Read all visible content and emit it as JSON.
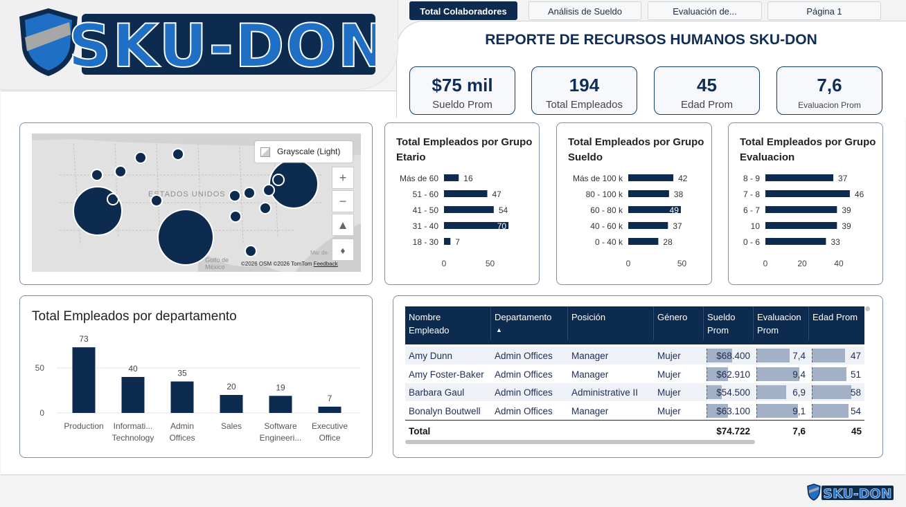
{
  "tabs": [
    "Total Colaboradores",
    "Análisis de Sueldo",
    "Evaluación de...",
    "Página 1"
  ],
  "brand": "SKU-DON",
  "title": "REPORTE DE RECURSOS HUMANOS SKU-DON",
  "kpis": [
    {
      "value": "$75 mil",
      "label": "Sueldo Prom"
    },
    {
      "value": "194",
      "label": "Total Empleados"
    },
    {
      "value": "45",
      "label": "Edad Prom"
    },
    {
      "value": "7,6",
      "label": "Evaluacion Prom"
    }
  ],
  "map": {
    "style_label": "Grayscale (Light)",
    "country_label": "ESTADOS UNIDOS",
    "gulf_label": "Golfo de México",
    "sea_label": "Mar de",
    "attribution": "©2026 OSM  ©2026 TomTom",
    "feedback": "Feedback",
    "zoom_in": "+",
    "zoom_out": "−",
    "colors": {
      "bubble": "#0d2a4f",
      "land": "#e1e1e1"
    }
  },
  "chart_data": [
    {
      "type": "bar",
      "orientation": "horizontal",
      "title": "Total Empleados por Grupo Etario",
      "categories": [
        "Más de 60",
        "51 - 60",
        "41 - 50",
        "31 - 40",
        "18 - 30"
      ],
      "values": [
        16,
        47,
        54,
        70,
        7
      ],
      "xticks": [
        "0",
        "50"
      ],
      "xlim": [
        0,
        75
      ]
    },
    {
      "type": "bar",
      "orientation": "horizontal",
      "title": "Total Empleados por Grupo Sueldo",
      "categories": [
        "Más de 100 k",
        "80 - 100 k",
        "60 - 80 k",
        "40 - 60 k",
        "0 - 40 k"
      ],
      "values": [
        42,
        38,
        49,
        37,
        28
      ],
      "xticks": [
        "0",
        "50"
      ],
      "xlim": [
        0,
        50
      ]
    },
    {
      "type": "bar",
      "orientation": "horizontal",
      "title": "Total Empleados por Grupo Evaluacion",
      "categories": [
        "8 - 9",
        "7 - 8",
        "6 - 7",
        "10",
        "0 - 6"
      ],
      "values": [
        37,
        46,
        39,
        39,
        33
      ],
      "xticks": [
        "0",
        "20",
        "40"
      ],
      "xlim": [
        0,
        46
      ]
    },
    {
      "type": "bar",
      "orientation": "vertical",
      "title": "Total Empleados por departamento",
      "categories": [
        [
          "Production"
        ],
        [
          "Informati...",
          "Technology"
        ],
        [
          "Admin",
          "Offices"
        ],
        [
          "Sales"
        ],
        [
          "Software",
          "Engineeri..."
        ],
        [
          "Executive",
          "Office"
        ]
      ],
      "values": [
        73,
        40,
        35,
        20,
        19,
        7
      ],
      "yticks": [
        "0",
        "50"
      ],
      "ylim": [
        0,
        80
      ],
      "grid": true
    }
  ],
  "table": {
    "headers": [
      [
        "Nombre",
        "Empleado"
      ],
      [
        "Departamento",
        ""
      ],
      [
        "Posición",
        ""
      ],
      [
        "Género",
        ""
      ],
      [
        "Sueldo",
        "Prom"
      ],
      [
        "Evaluacion",
        "Prom"
      ],
      [
        "Edad Prom",
        ""
      ]
    ],
    "sort_indicator": "▲",
    "rows": [
      {
        "cells": [
          "Amy Dunn",
          "Admin Offices",
          "Manager",
          "Mujer",
          "$68.400",
          "7,4",
          "47"
        ],
        "bars": [
          0.6,
          0.68,
          0.68
        ]
      },
      {
        "cells": [
          "Amy Foster-Baker",
          "Admin Offices",
          "Manager",
          "Mujer",
          "$62.910",
          "9,4",
          "51"
        ],
        "bars": [
          0.5,
          0.88,
          0.72
        ]
      },
      {
        "cells": [
          "Barbara Gaul",
          "Admin Offices",
          "Administrative II",
          "Mujer",
          "$54.500",
          "6,9",
          "58"
        ],
        "bars": [
          0.35,
          0.62,
          0.82
        ]
      },
      {
        "cells": [
          "Bonalyn Boutwell",
          "Admin Offices",
          "Manager",
          "Mujer",
          "$63.100",
          "9,1",
          "54"
        ],
        "bars": [
          0.5,
          0.85,
          0.76
        ]
      }
    ],
    "total": {
      "label": "Total",
      "values": [
        "$74.722",
        "7,6",
        "45"
      ]
    }
  },
  "colors": {
    "bar": "#0d2a4f",
    "bar_light": "#a3b1c7",
    "title": "#0f2d57"
  }
}
